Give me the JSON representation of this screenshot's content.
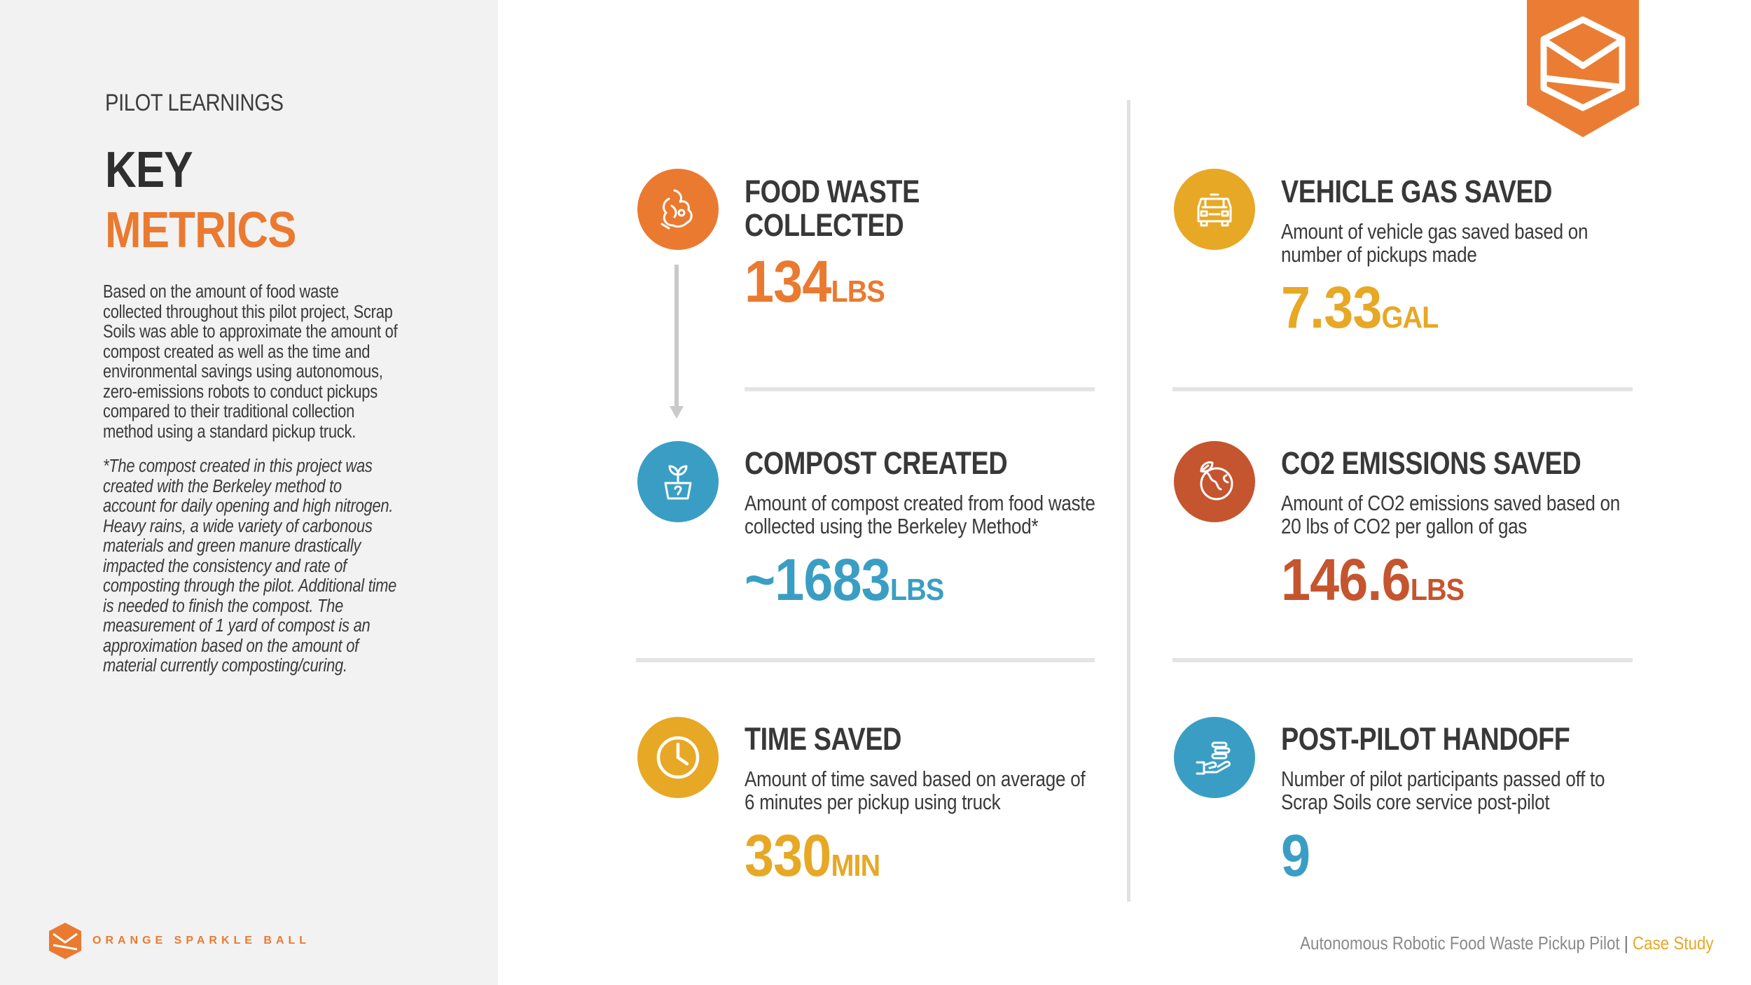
{
  "left": {
    "eyebrow": "PILOT LEARNINGS",
    "title_line1": "KEY",
    "title_line2": "METRICS",
    "body": "Based on the amount of food waste collected throughout this pilot project, Scrap Soils was able to approximate the amount of compost created as well as the time and environmental savings using autonomous, zero-emissions robots to conduct pickups compared to their traditional collection method using a standard pickup truck.",
    "note": "*The compost created in this project was created with the Berkeley method to account for daily opening and high nitrogen. Heavy rains, a wide variety of carbonous materials and green manure drastically impacted the consistency and rate of composting through the pilot. Additional time is needed to finish the compost. The measurement of 1 yard of compost is an approximation based on the amount of material currently composting/curing.",
    "brand": "ORANGE SPARKLE BALL"
  },
  "colors": {
    "orange": "#ea7a30",
    "teal": "#3a9ec4",
    "yellow": "#e7a826",
    "rust": "#c4552f",
    "badge": "#ea7d33"
  },
  "metrics": {
    "food_waste": {
      "title_line1": "FOOD WASTE",
      "title_line2": "COLLECTED",
      "value": "134",
      "unit": "LBS",
      "icon": "food-waste-icon"
    },
    "compost": {
      "title": "COMPOST CREATED",
      "desc_line1": "Amount of compost created from food waste",
      "desc_line2": "collected using the Berkeley Method*",
      "value": "~1683",
      "unit": "LBS",
      "icon": "plant-pot-icon"
    },
    "time": {
      "title": "TIME SAVED",
      "desc_line1": "Amount of time saved based on average of",
      "desc_line2": "6 minutes per pickup using truck",
      "value": "330",
      "unit": "MIN",
      "icon": "clock-icon"
    },
    "gas": {
      "title": "VEHICLE GAS SAVED",
      "desc_line1": "Amount of vehicle gas saved based on",
      "desc_line2": "number of pickups made",
      "value": "7.33",
      "unit": "GAL",
      "icon": "truck-icon"
    },
    "co2": {
      "title": "CO2 EMISSIONS SAVED",
      "desc_line1": "Amount of CO2 emissions saved based on",
      "desc_line2": "20 lbs of CO2 per gallon of gas",
      "value": "146.6",
      "unit": "LBS",
      "icon": "globe-leaf-icon"
    },
    "handoff": {
      "title": "POST-PILOT HANDOFF",
      "desc_line1": "Number of pilot participants passed off to",
      "desc_line2": "Scrap Soils core service post-pilot",
      "value": "9",
      "unit": "",
      "icon": "hand-coins-icon"
    }
  },
  "footer": {
    "title": "Autonomous Robotic Food Waste Pickup Pilot",
    "separator": "|",
    "label": "Case Study"
  }
}
